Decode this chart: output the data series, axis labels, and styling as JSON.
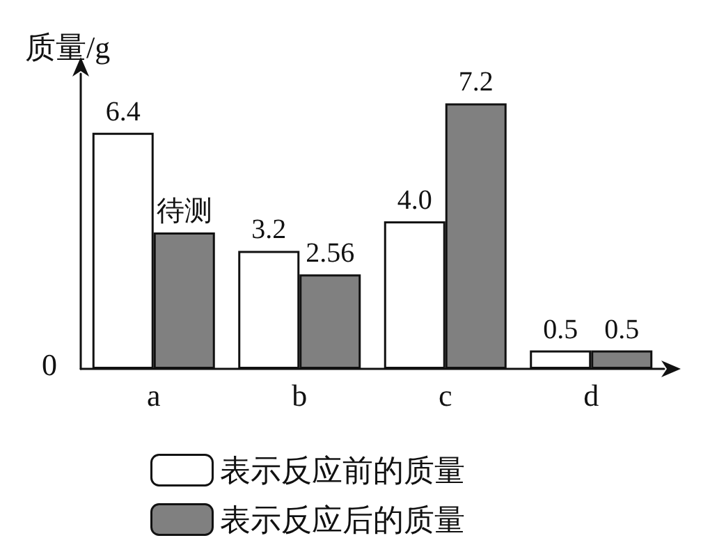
{
  "chart_data": {
    "type": "bar",
    "ylabel": "质量/g",
    "categories": [
      "a",
      "b",
      "c",
      "d"
    ],
    "series": [
      {
        "name": "表示反应前的质量",
        "color": "#ffffff",
        "values": [
          6.4,
          3.2,
          4.0,
          0.5
        ],
        "value_labels": [
          "6.4",
          "3.2",
          "4.0",
          "0.5"
        ]
      },
      {
        "name": "表示反应后的质量",
        "color": "#808080",
        "values": [
          3.7,
          2.56,
          7.2,
          0.5
        ],
        "value_labels": [
          "待测",
          "2.56",
          "7.2",
          "0.5"
        ]
      }
    ],
    "annotations": [
      "0"
    ],
    "legend": "bottom",
    "grid": false
  }
}
